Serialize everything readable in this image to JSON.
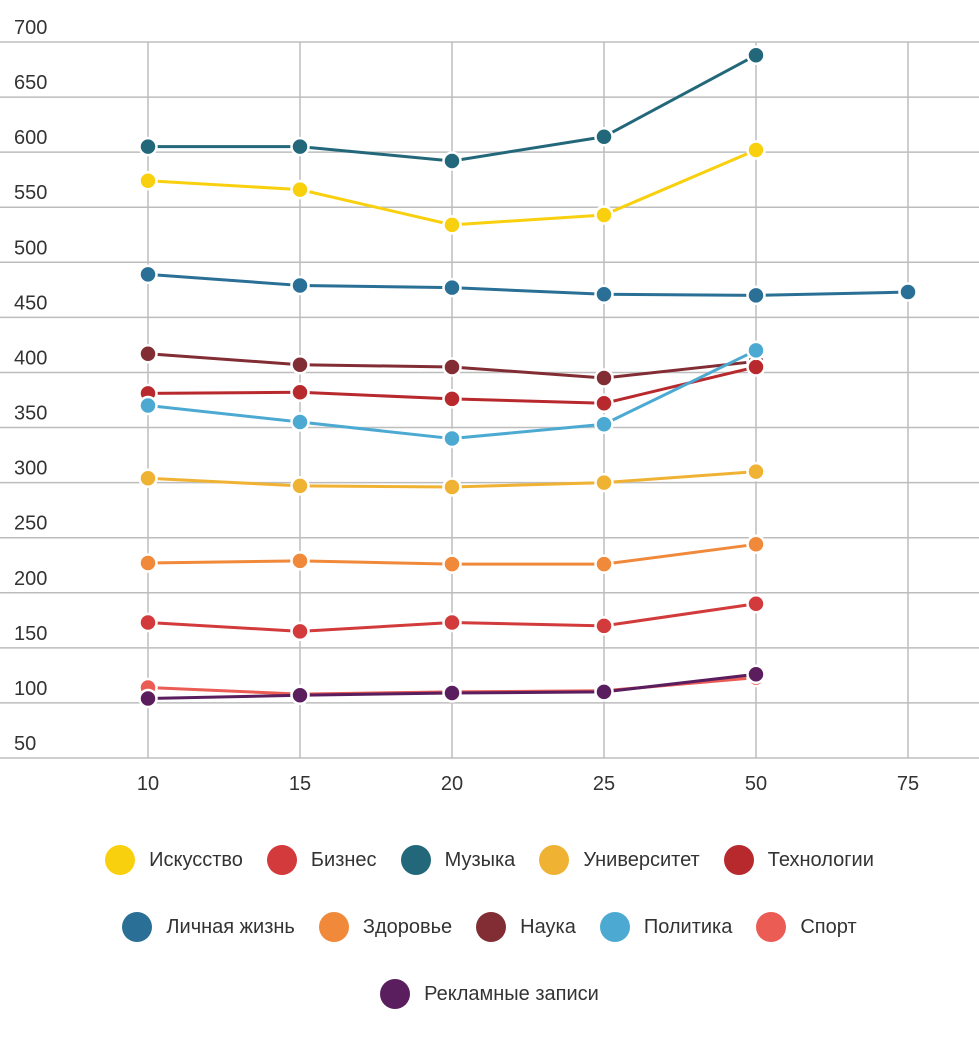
{
  "chart_data": {
    "type": "line",
    "categories": [
      "10",
      "15",
      "20",
      "25",
      "50",
      "75"
    ],
    "y_ticks": [
      "700",
      "650",
      "600",
      "550",
      "500",
      "450",
      "400",
      "350",
      "300",
      "250",
      "200",
      "150",
      "100",
      "50"
    ],
    "ylim": [
      50,
      700
    ],
    "grid": true,
    "legend_position": "bottom",
    "series": [
      {
        "name": "Музыка",
        "color": "#23687a",
        "values": [
          605,
          605,
          592,
          614,
          688,
          null
        ]
      },
      {
        "name": "Искусство",
        "color": "#f9d00e",
        "values": [
          574,
          566,
          534,
          543,
          602,
          null
        ]
      },
      {
        "name": "Личная жизнь",
        "color": "#2a6f95",
        "values": [
          489,
          479,
          477,
          471,
          470,
          473
        ]
      },
      {
        "name": "Наука",
        "color": "#822d34",
        "values": [
          417,
          407,
          405,
          395,
          410,
          null
        ]
      },
      {
        "name": "Технологии",
        "color": "#b8292d",
        "values": [
          381,
          382,
          376,
          372,
          405,
          null
        ]
      },
      {
        "name": "Политика",
        "color": "#4caad2",
        "values": [
          370,
          355,
          340,
          353,
          420,
          null
        ]
      },
      {
        "name": "Университет",
        "color": "#f0b233",
        "values": [
          304,
          297,
          296,
          300,
          310,
          null
        ]
      },
      {
        "name": "Здоровье",
        "color": "#f0893a",
        "values": [
          227,
          229,
          226,
          226,
          244,
          null
        ]
      },
      {
        "name": "Бизнес",
        "color": "#d23a3b",
        "values": [
          173,
          165,
          173,
          170,
          190,
          null
        ]
      },
      {
        "name": "Спорт",
        "color": "#eb5c55",
        "values": [
          114,
          108,
          110,
          111,
          123,
          null
        ]
      },
      {
        "name": "Рекламные записи",
        "color": "#5a1e5e",
        "values": [
          104,
          107,
          109,
          110,
          126,
          null
        ]
      }
    ]
  },
  "legend": {
    "rows": [
      [
        {
          "label": "Искусство",
          "color": "#f9d00e"
        },
        {
          "label": "Бизнес",
          "color": "#d23a3b"
        },
        {
          "label": "Музыка",
          "color": "#23687a"
        },
        {
          "label": "Университет",
          "color": "#f0b233"
        },
        {
          "label": "Технологии",
          "color": "#b8292d"
        }
      ],
      [
        {
          "label": "Личная жизнь",
          "color": "#2a6f95"
        },
        {
          "label": "Здоровье",
          "color": "#f0893a"
        },
        {
          "label": "Наука",
          "color": "#822d34"
        },
        {
          "label": "Политика",
          "color": "#4caad2"
        },
        {
          "label": "Спорт",
          "color": "#eb5c55"
        }
      ],
      [
        {
          "label": "Рекламные записи",
          "color": "#5a1e5e"
        }
      ]
    ]
  }
}
